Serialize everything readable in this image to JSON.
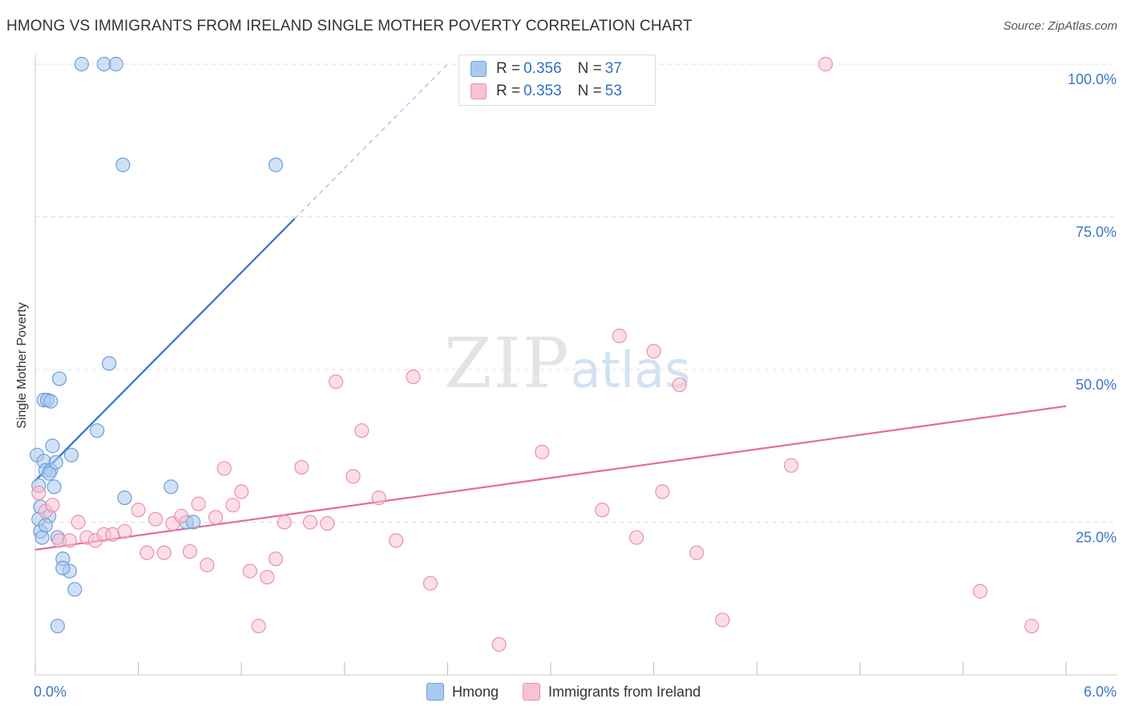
{
  "header": {
    "title": "HMONG VS IMMIGRANTS FROM IRELAND SINGLE MOTHER POVERTY CORRELATION CHART",
    "source": "Source: ZipAtlas.com"
  },
  "watermark": {
    "main": "ZIP",
    "sub": "atlas"
  },
  "legend_top": [
    {
      "r_label": "R = ",
      "r_value": "0.356",
      "n_label": "N = ",
      "n_value": "37"
    },
    {
      "r_label": "R = ",
      "r_value": "0.353",
      "n_label": "N = ",
      "n_value": "53"
    }
  ],
  "colors": {
    "hmong_fill": "#aac9ef",
    "hmong_stroke": "#6c9fdb",
    "hmong_line": "#2f73cf",
    "ireland_fill": "#f7c2d3",
    "ireland_stroke": "#ec8fae",
    "ireland_line": "#e56b96",
    "tick_label": "#3a76c5"
  },
  "chart_data": {
    "type": "scatter",
    "title": "HMONG VS IMMIGRANTS FROM IRELAND SINGLE MOTHER POVERTY CORRELATION CHART",
    "xlabel": "",
    "ylabel": "Single Mother Poverty",
    "xlim": [
      0,
      6
    ],
    "ylim": [
      0,
      100
    ],
    "x_tick_labels": [
      "0.0%",
      "6.0%"
    ],
    "y_ticks": [
      25,
      50,
      75,
      100
    ],
    "y_tick_labels": [
      "25.0%",
      "50.0%",
      "75.0%",
      "100.0%"
    ],
    "grid": true,
    "legend_position": "bottom",
    "series": [
      {
        "name": "Hmong",
        "x": [
          0.27,
          0.4,
          0.47,
          0.51,
          1.4,
          0.43,
          0.01,
          0.02,
          0.03,
          0.05,
          0.06,
          0.08,
          0.09,
          0.1,
          0.12,
          0.13,
          0.14,
          0.16,
          0.2,
          0.23,
          0.05,
          0.07,
          0.09,
          0.11,
          0.16,
          0.21,
          0.36,
          0.52,
          0.79,
          0.88,
          0.92,
          0.02,
          0.03,
          0.04,
          0.06,
          0.08,
          0.13
        ],
        "y": [
          100.0,
          100.0,
          100.0,
          83.5,
          83.5,
          51.0,
          36.0,
          31.0,
          27.5,
          35.0,
          33.5,
          26.0,
          33.5,
          37.5,
          34.8,
          22.5,
          48.5,
          19.0,
          17.0,
          14.0,
          45.0,
          45.0,
          44.8,
          30.8,
          17.5,
          36.0,
          40.0,
          29.0,
          30.8,
          25.0,
          25.0,
          25.5,
          23.5,
          22.5,
          24.5,
          33.0,
          8.0
        ],
        "line": {
          "x": [
            0.0,
            1.51
          ],
          "y": [
            31.8,
            74.7
          ]
        },
        "line_dashed_extension": {
          "x": [
            1.51,
            2.4
          ],
          "y": [
            74.7,
            100.0
          ]
        }
      },
      {
        "name": "Immigrants from Ireland",
        "x": [
          0.02,
          0.06,
          0.1,
          0.14,
          0.2,
          0.25,
          0.3,
          0.35,
          0.4,
          0.45,
          0.52,
          0.6,
          0.65,
          0.7,
          0.75,
          0.8,
          0.85,
          0.9,
          0.95,
          1.0,
          1.05,
          1.1,
          1.15,
          1.2,
          1.25,
          1.3,
          1.35,
          1.4,
          1.45,
          1.55,
          1.6,
          1.7,
          1.75,
          1.85,
          1.9,
          2.0,
          2.1,
          2.2,
          2.3,
          2.7,
          2.95,
          3.3,
          3.4,
          3.5,
          3.6,
          3.65,
          3.75,
          3.85,
          4.0,
          4.4,
          4.6,
          5.5,
          5.8
        ],
        "y": [
          29.8,
          26.8,
          27.8,
          22.0,
          22.0,
          25.0,
          22.5,
          22.0,
          23.0,
          23.0,
          23.5,
          27.0,
          20.0,
          25.5,
          20.0,
          24.8,
          26.0,
          20.2,
          28.0,
          18.0,
          25.8,
          33.8,
          27.8,
          30.0,
          17.0,
          8.0,
          16.0,
          19.0,
          25.0,
          34.0,
          25.0,
          24.8,
          48.0,
          32.5,
          40.0,
          29.0,
          22.0,
          48.8,
          15.0,
          5.0,
          36.5,
          27.0,
          55.5,
          22.5,
          53.0,
          30.0,
          47.5,
          20.0,
          9.0,
          34.3,
          100.0,
          13.7,
          8.0
        ],
        "line": {
          "x": [
            0.0,
            6.0
          ],
          "y": [
            20.5,
            44.0
          ]
        }
      }
    ]
  }
}
